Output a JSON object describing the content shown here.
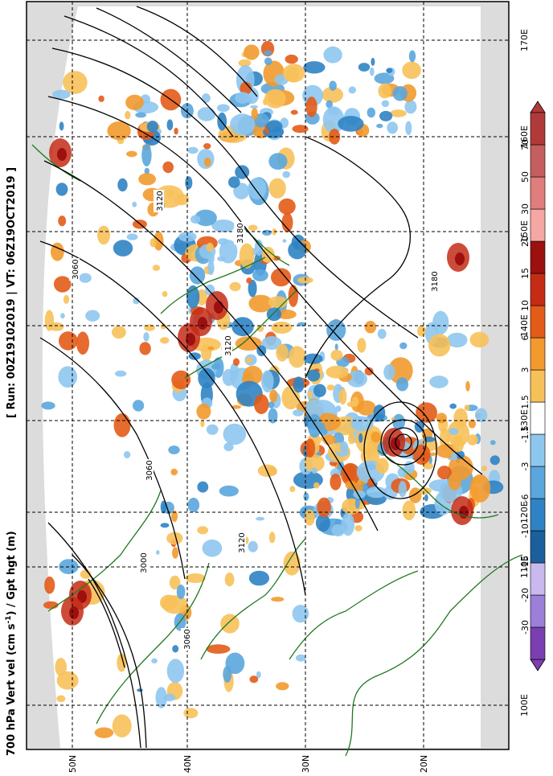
{
  "title": {
    "main": "700 hPa Vert vel (cm s",
    "unit_exp": "-1",
    "rest": ") / Gpt hgt (m)",
    "run_label": "[ Run: 00Z19102019 | VT: 06Z19OCT2019 ]"
  },
  "lon_ticks": [
    "100E",
    "110E",
    "120E",
    "130E",
    "140E",
    "150E",
    "160E",
    "170E"
  ],
  "lat_ticks": [
    "50N",
    "40N",
    "30N",
    "20N"
  ],
  "contour_labels": [
    "3000",
    "3060",
    "3060",
    "3060",
    "3120",
    "3120",
    "3120",
    "3180",
    "3180"
  ],
  "colorbar": {
    "labels": [
      "-30",
      "-20",
      "-15",
      "-10",
      "-6",
      "-3",
      "-1.5",
      "1.5",
      "3",
      "6",
      "10",
      "15",
      "20",
      "30",
      "50",
      "70"
    ],
    "colors": [
      "#7a3fb0",
      "#9b7fd8",
      "#c9b9ee",
      "#1c5f9c",
      "#2f83c4",
      "#5aa6dd",
      "#8ec7ee",
      "#ffffff",
      "#f7c15a",
      "#f29a2e",
      "#e35b18",
      "#c42c16",
      "#9c1010",
      "#f4a7a3",
      "#e07d7d",
      "#c55e5e",
      "#b03a3a"
    ]
  },
  "colors": {
    "land_outline": "#1f7a1f",
    "ocean_outside": "#dcdcdc",
    "contour": "#000000",
    "grid": "#000000"
  }
}
